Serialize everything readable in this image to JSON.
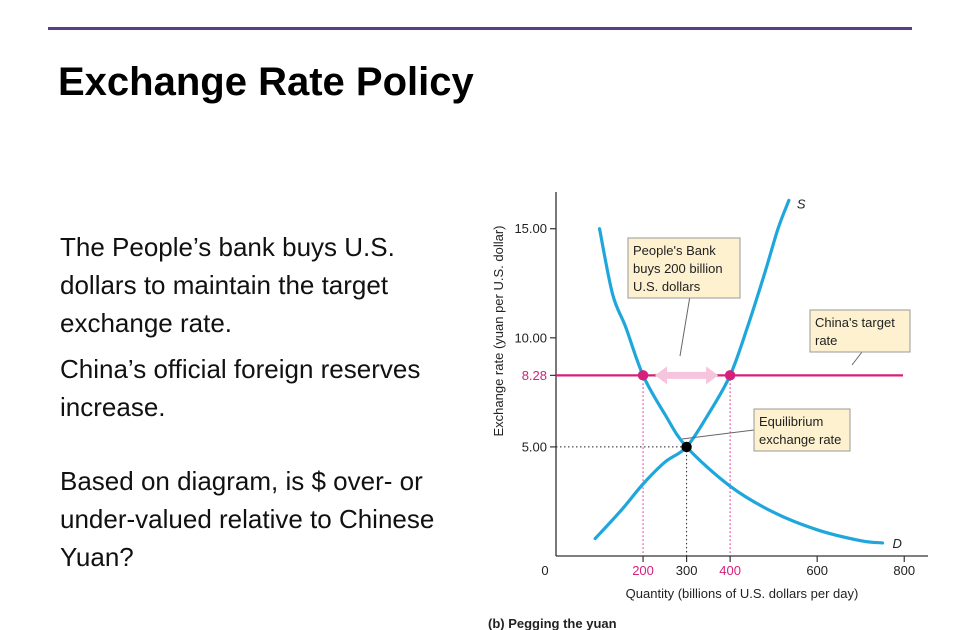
{
  "slide": {
    "title": "Exchange Rate Policy",
    "paragraphs": [
      "The People’s bank buys U.S. dollars to maintain the target exchange rate.",
      "China’s official foreign reserves increase.",
      "Based on diagram, is $ over- or under-valued relative to Chinese Yuan?"
    ]
  },
  "colors": {
    "accent_rule": "#5b3f86",
    "curve": "#1fa7dc",
    "target_line": "#d6207a",
    "callout_fill": "#fdf1cf",
    "arrow_fill": "#f6c4dc"
  },
  "chart_data": {
    "type": "line",
    "xlabel": "Quantity (billions of U.S. dollars per day)",
    "ylabel": "Exchange rate (yuan per U.S. dollar)",
    "caption": "(b) Pegging the yuan",
    "x_ticks": [
      0,
      200,
      300,
      400,
      600,
      800
    ],
    "x_tick_labels": [
      "0",
      "200",
      "300",
      "400",
      "600",
      "800"
    ],
    "y_ticks": [
      5.0,
      8.28,
      10.0,
      15.0
    ],
    "y_tick_labels": [
      "5.00",
      "8.28",
      "10.00",
      "15.00"
    ],
    "xlim": [
      0,
      850
    ],
    "ylim": [
      0,
      16.5
    ],
    "series": [
      {
        "name": "S",
        "points": [
          [
            90,
            0.8
          ],
          [
            150,
            2.1
          ],
          [
            200,
            3.3
          ],
          [
            250,
            4.3
          ],
          [
            300,
            5.0
          ],
          [
            350,
            6.5
          ],
          [
            400,
            8.28
          ],
          [
            440,
            10.5
          ],
          [
            480,
            13.0
          ],
          [
            510,
            15.0
          ],
          [
            535,
            16.3
          ]
        ]
      },
      {
        "name": "D",
        "points": [
          [
            100,
            15.0
          ],
          [
            130,
            12.0
          ],
          [
            160,
            10.5
          ],
          [
            200,
            8.28
          ],
          [
            250,
            6.5
          ],
          [
            300,
            5.0
          ],
          [
            400,
            3.2
          ],
          [
            500,
            2.0
          ],
          [
            600,
            1.2
          ],
          [
            700,
            0.7
          ],
          [
            750,
            0.6
          ]
        ]
      }
    ],
    "target_rate": {
      "value": 8.28,
      "label": "China's target rate"
    },
    "equilibrium": {
      "x": 300,
      "y": 5.0,
      "label": "Equilibrium exchange rate"
    },
    "peg_points": [
      {
        "x": 200,
        "y": 8.28
      },
      {
        "x": 400,
        "y": 8.28
      }
    ],
    "annotations": {
      "peoples_bank": "People's Bank buys 200 billion U.S. dollars",
      "target": "China's target rate",
      "equilibrium": "Equilibrium exchange rate"
    }
  }
}
